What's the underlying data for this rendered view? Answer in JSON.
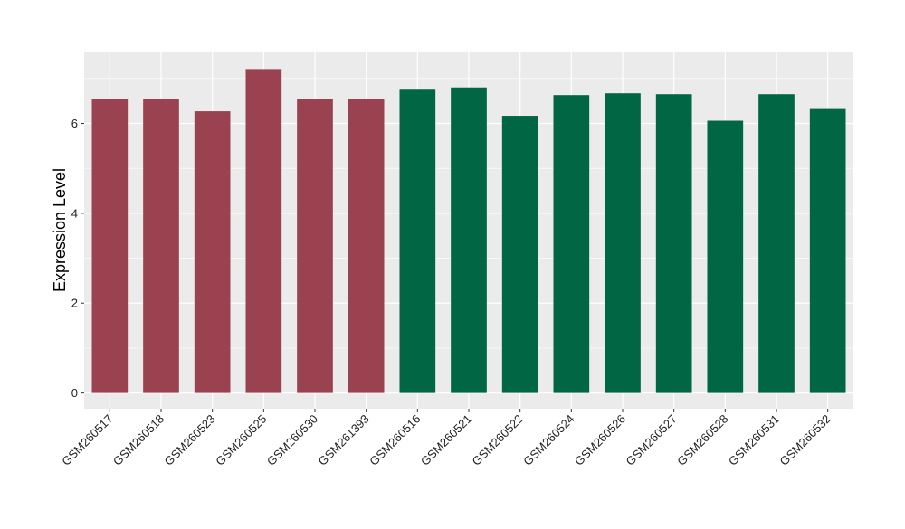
{
  "chart_data": {
    "type": "bar",
    "title": "",
    "xlabel": "",
    "ylabel": "Expression Level",
    "ylim": [
      -0.35,
      7.6
    ],
    "yticks": [
      0,
      2,
      4,
      6
    ],
    "grid": true,
    "legend": "none",
    "categories": [
      "GSM260517",
      "GSM260518",
      "GSM260523",
      "GSM260525",
      "GSM260530",
      "GSM261393",
      "GSM260516",
      "GSM260521",
      "GSM260522",
      "GSM260524",
      "GSM260526",
      "GSM260527",
      "GSM260528",
      "GSM260531",
      "GSM260532"
    ],
    "values": [
      6.55,
      6.55,
      6.27,
      7.21,
      6.55,
      6.55,
      6.77,
      6.8,
      6.17,
      6.63,
      6.67,
      6.65,
      6.06,
      6.65,
      6.34
    ],
    "bar_colors": [
      "#9a4250",
      "#9a4250",
      "#9a4250",
      "#9a4250",
      "#9a4250",
      "#9a4250",
      "#006644",
      "#006644",
      "#006644",
      "#006644",
      "#006644",
      "#006644",
      "#006644",
      "#006644",
      "#006644"
    ],
    "panel_background": "#ebebeb",
    "gridline_color": "#ffffff"
  }
}
